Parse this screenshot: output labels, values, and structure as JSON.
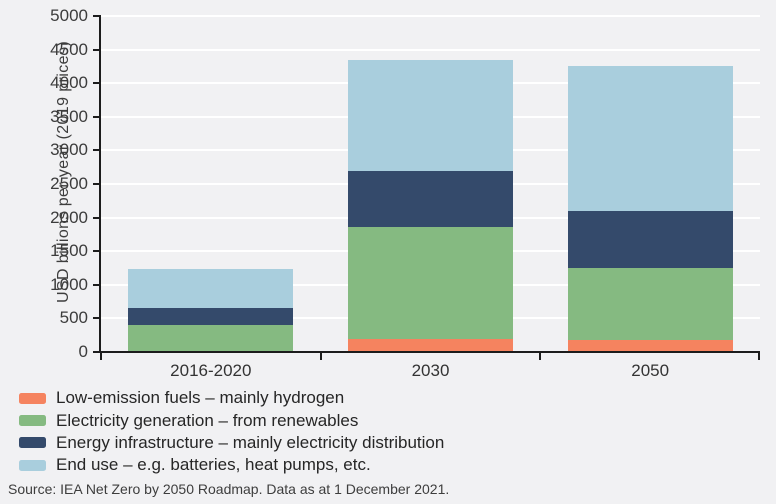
{
  "chart_data": {
    "type": "bar",
    "stacked": true,
    "title": "",
    "xlabel": "",
    "ylabel": "USD billions per year (2019 prices)",
    "ylim": [
      0,
      5000
    ],
    "ytick_step": 500,
    "yticks": [
      0,
      500,
      1000,
      1500,
      2000,
      2500,
      3000,
      3500,
      4000,
      4500,
      5000
    ],
    "grid": true,
    "legend_position": "bottom-left",
    "categories": [
      "2016-2020",
      "2030",
      "2050"
    ],
    "series": [
      {
        "name": "Low-emission fuels – mainly hydrogen",
        "color": "#f5835f",
        "values": [
          10,
          200,
          175
        ]
      },
      {
        "name": "Electricity generation – from renewables",
        "color": "#85ba81",
        "values": [
          390,
          1660,
          1075
        ]
      },
      {
        "name": "Energy infrastructure – mainly electricity distribution",
        "color": "#344a6b",
        "values": [
          250,
          840,
          850
        ]
      },
      {
        "name": "End use – e.g. batteries, heat pumps, etc.",
        "color": "#a9cedd",
        "values": [
          580,
          1650,
          2150
        ]
      }
    ],
    "totals": [
      1230,
      4350,
      4250
    ]
  },
  "source": "Source: IEA Net Zero by 2050 Roadmap. Data as at 1 December 2021.",
  "colors": {
    "background": "#f1f1f3",
    "grid": "#ffffff",
    "axis": "#1c1c1c",
    "tick_text": "#3c3c3c",
    "legend_text": "#262626"
  }
}
